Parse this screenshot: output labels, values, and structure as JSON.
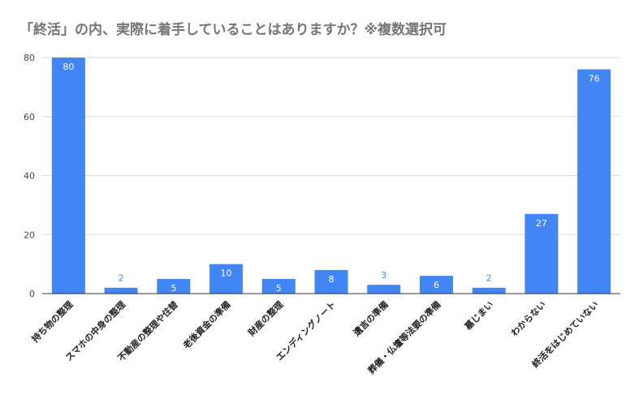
{
  "chart_data": {
    "type": "bar",
    "title": "「終活」の内、実際に着手していることはありますか？※複数選択可",
    "xlabel": "",
    "ylabel": "",
    "ylim": [
      0,
      80
    ],
    "yticks": [
      0,
      20,
      40,
      60,
      80
    ],
    "grid": true,
    "legend": "none",
    "bar_color": "#4285f4",
    "categories": [
      "持ち物の整理",
      "スマホの中身の整理",
      "不動産の整理や住替",
      "老後資金の準備",
      "財産の整理",
      "エンディングノート",
      "遺言の準備",
      "葬儀・仏壇等法要の準備",
      "墓じまい",
      "わからない",
      "終活をはじめていない"
    ],
    "values": [
      80,
      2,
      5,
      10,
      5,
      8,
      3,
      6,
      2,
      27,
      76
    ]
  }
}
